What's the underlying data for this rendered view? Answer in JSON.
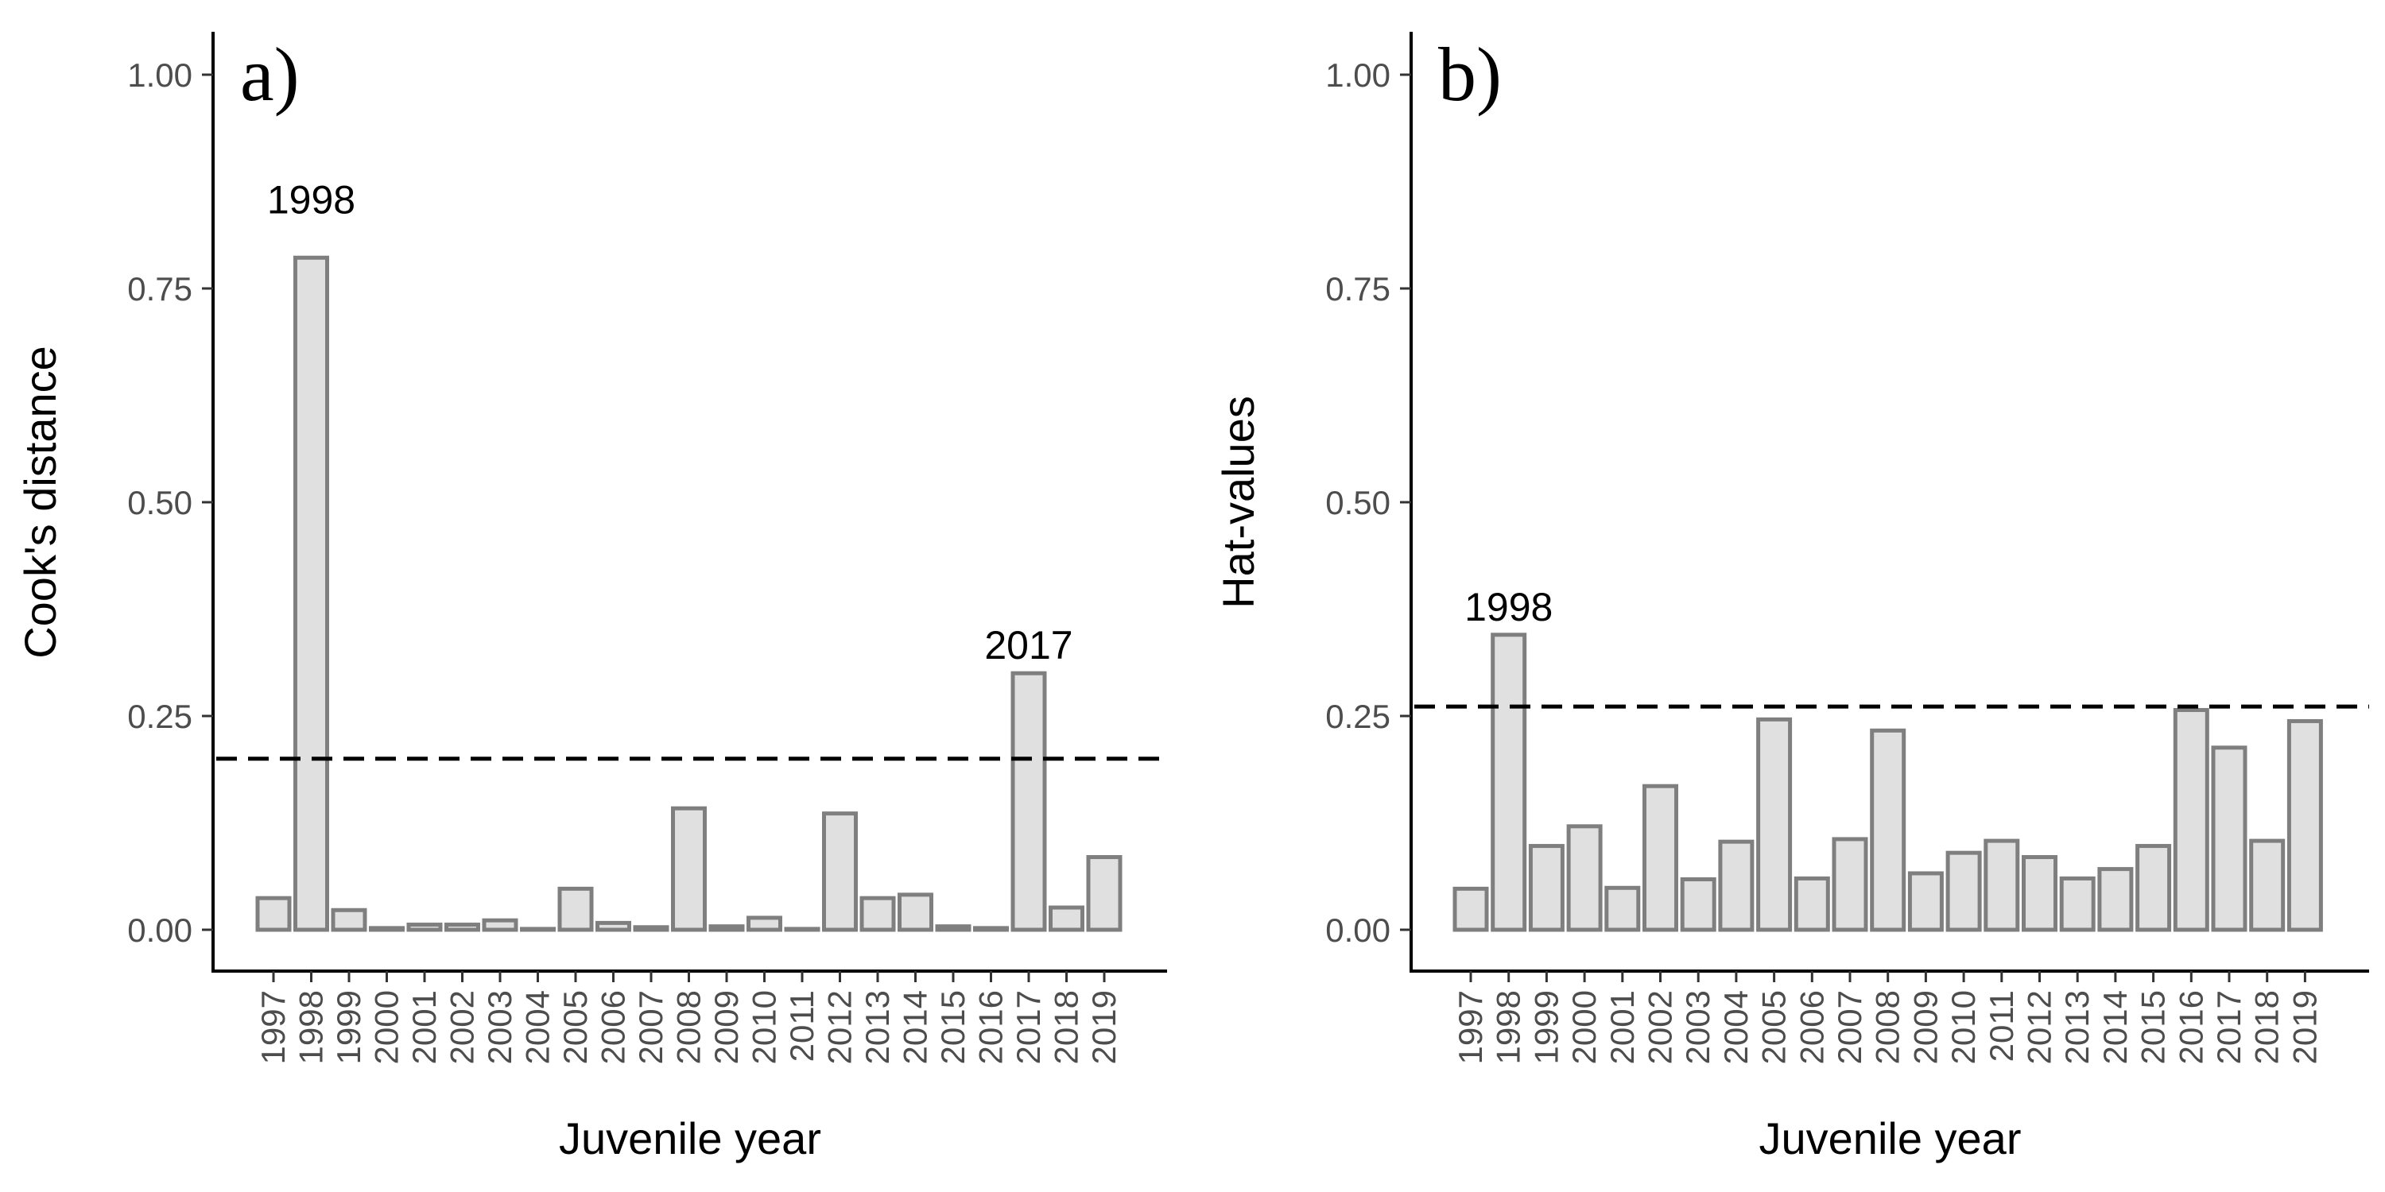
{
  "colors": {
    "bar_fill": "#e0e0e0",
    "bar_stroke": "#7f7f7f",
    "axis": "#000000",
    "threshold_line": "#000000"
  },
  "chart_data": [
    {
      "type": "bar",
      "panel_label": "a)",
      "xlabel": "Juvenile year",
      "ylabel": "Cook's distance",
      "ylim": [
        0,
        1
      ],
      "y_ticks": [
        "0.00",
        "0.25",
        "0.50",
        "0.75",
        "1.00"
      ],
      "grid": false,
      "categories": [
        "1997",
        "1998",
        "1999",
        "2000",
        "2001",
        "2002",
        "2003",
        "2004",
        "2005",
        "2006",
        "2007",
        "2008",
        "2009",
        "2010",
        "2011",
        "2012",
        "2013",
        "2014",
        "2015",
        "2016",
        "2017",
        "2018",
        "2019"
      ],
      "values": [
        0.037,
        0.786,
        0.023,
        0.002,
        0.006,
        0.006,
        0.011,
        0.001,
        0.048,
        0.008,
        0.003,
        0.142,
        0.004,
        0.014,
        0.001,
        0.136,
        0.037,
        0.041,
        0.004,
        0.002,
        0.3,
        0.026,
        0.085
      ],
      "threshold": 0.2,
      "annotations": [
        {
          "category": "1998",
          "text": "1998"
        },
        {
          "category": "2017",
          "text": "2017"
        }
      ]
    },
    {
      "type": "bar",
      "panel_label": "b)",
      "xlabel": "Juvenile year",
      "ylabel": "Hat-values",
      "ylim": [
        0,
        1
      ],
      "y_ticks": [
        "0.00",
        "0.25",
        "0.50",
        "0.75",
        "1.00"
      ],
      "grid": false,
      "categories": [
        "1997",
        "1998",
        "1999",
        "2000",
        "2001",
        "2002",
        "2003",
        "2004",
        "2005",
        "2006",
        "2007",
        "2008",
        "2009",
        "2010",
        "2011",
        "2012",
        "2013",
        "2014",
        "2015",
        "2016",
        "2017",
        "2018",
        "2019"
      ],
      "values": [
        0.048,
        0.345,
        0.098,
        0.121,
        0.049,
        0.168,
        0.059,
        0.103,
        0.246,
        0.06,
        0.106,
        0.233,
        0.066,
        0.09,
        0.104,
        0.085,
        0.06,
        0.071,
        0.098,
        0.257,
        0.213,
        0.104,
        0.244
      ],
      "threshold": 0.261,
      "annotations": [
        {
          "category": "1998",
          "text": "1998"
        }
      ]
    }
  ]
}
